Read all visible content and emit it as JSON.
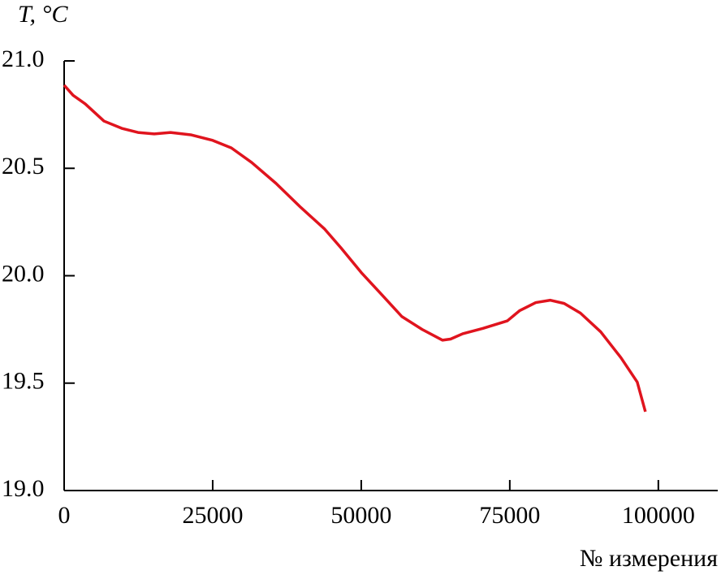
{
  "chart_data": {
    "type": "line",
    "y_label": "T, °C",
    "x_label": "№ измерения",
    "x": [
      0,
      1500,
      3550,
      6700,
      9700,
      12430,
      15160,
      17900,
      21300,
      25000,
      28140,
      31560,
      35650,
      39750,
      43850,
      46580,
      50000,
      53420,
      56830,
      60250,
      63660,
      65030,
      67080,
      70490,
      74590,
      76640,
      79370,
      81830,
      84150,
      86890,
      90300,
      93720,
      96450,
      97820
    ],
    "series": [
      {
        "color": "#e0141e",
        "values": [
          20.887,
          20.84,
          20.8,
          20.72,
          20.686,
          20.667,
          20.66,
          20.667,
          20.656,
          20.63,
          20.595,
          20.527,
          20.43,
          20.32,
          20.217,
          20.13,
          20.015,
          19.913,
          19.81,
          19.75,
          19.7,
          19.705,
          19.73,
          19.755,
          19.79,
          19.837,
          19.875,
          19.886,
          19.871,
          19.826,
          19.739,
          19.618,
          19.505,
          19.367
        ]
      }
    ],
    "xlim": [
      0,
      110000
    ],
    "xticks": [
      0,
      25000,
      50000,
      75000,
      100000
    ],
    "ylim": [
      19.0,
      21.0
    ],
    "yticks": [
      {
        "value": 19,
        "label": "19.0"
      },
      19.5,
      {
        "value": 20,
        "label": "20.0"
      },
      20.5,
      {
        "value": 21,
        "label": "21.0"
      }
    ]
  }
}
